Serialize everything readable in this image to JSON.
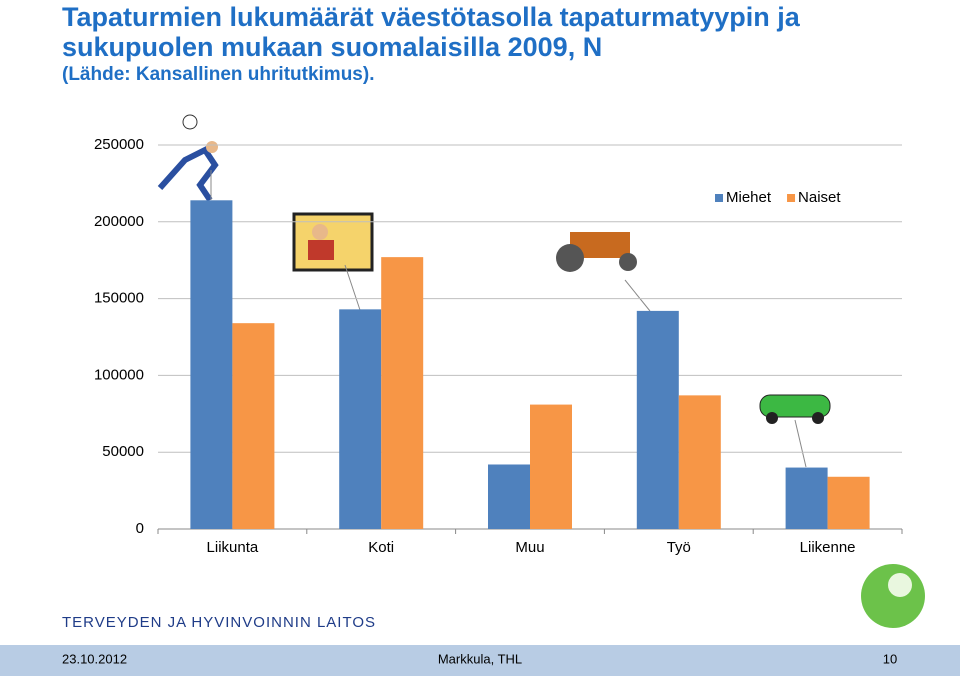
{
  "chart_data": {
    "type": "bar",
    "title": "Tapaturmien lukumäärät väestötasolla tapaturmatyypin ja sukupuolen mukaan suomalaisilla 2009, N",
    "subtitle": "(Lähde: Kansallinen uhritutkimus).",
    "categories": [
      "Liikunta",
      "Koti",
      "Muu",
      "Työ",
      "Liikenne"
    ],
    "series": [
      {
        "name": "Miehet",
        "color": "#4f81bd",
        "values": [
          214000,
          143000,
          42000,
          142000,
          40000
        ]
      },
      {
        "name": "Naiset",
        "color": "#f79646",
        "values": [
          134000,
          177000,
          81000,
          87000,
          34000
        ]
      }
    ],
    "ylim": [
      0,
      250000
    ],
    "yticks": [
      0,
      50000,
      100000,
      150000,
      200000,
      250000
    ],
    "grid": true,
    "legend": "top-right"
  },
  "logo": "TERVEYDEN JA HYVINVOINNIN LAITOS",
  "footer": {
    "date": "23.10.2012",
    "author": "Markkula, THL",
    "page": "10"
  }
}
